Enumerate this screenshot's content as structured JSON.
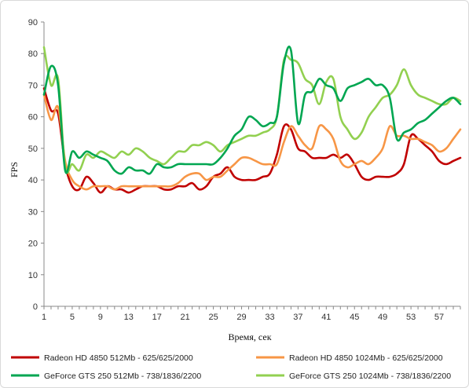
{
  "chart_data": {
    "type": "line",
    "title": "",
    "xlabel": "Время, сек",
    "ylabel": "FPS",
    "xlim": [
      1,
      60
    ],
    "ylim": [
      0,
      90
    ],
    "y_ticks": [
      0,
      10,
      20,
      30,
      40,
      50,
      60,
      70,
      80,
      90
    ],
    "x_ticks": [
      1,
      5,
      9,
      13,
      17,
      21,
      25,
      29,
      33,
      37,
      41,
      45,
      49,
      53,
      57
    ],
    "grid": false,
    "legend_position": "bottom",
    "series": [
      {
        "name": "Radeon HD 4850 512Mb - 625/625/2000",
        "color": "#c00000",
        "x": [
          1,
          2,
          3,
          4,
          5,
          6,
          7,
          8,
          9,
          10,
          11,
          12,
          13,
          14,
          15,
          16,
          17,
          18,
          19,
          20,
          21,
          22,
          23,
          24,
          25,
          26,
          27,
          28,
          29,
          30,
          31,
          32,
          33,
          34,
          35,
          36,
          37,
          38,
          39,
          40,
          41,
          42,
          43,
          44,
          45,
          46,
          47,
          48,
          49,
          50,
          51,
          52,
          53,
          54,
          55,
          56,
          57,
          58,
          59,
          60
        ],
        "values": [
          69,
          62,
          61,
          45,
          38,
          37,
          41,
          39,
          36,
          38,
          37,
          37,
          36,
          37,
          38,
          38,
          38,
          37,
          37,
          38,
          38,
          39,
          37,
          38,
          41,
          42,
          44,
          41,
          40,
          40,
          40,
          41,
          42,
          48,
          57,
          56,
          50,
          49,
          47,
          47,
          47,
          48,
          47,
          48,
          45,
          41,
          40,
          41,
          41,
          41,
          42,
          45,
          54,
          53,
          51,
          49,
          46,
          45,
          46,
          47
        ]
      },
      {
        "name": "Radeon HD 4850 1024Mb - 625/625/2000",
        "color": "#f79646",
        "x": [
          1,
          2,
          3,
          4,
          5,
          6,
          7,
          8,
          9,
          10,
          11,
          12,
          13,
          14,
          15,
          16,
          17,
          18,
          19,
          20,
          21,
          22,
          23,
          24,
          25,
          26,
          27,
          28,
          29,
          30,
          31,
          32,
          33,
          34,
          35,
          36,
          37,
          38,
          39,
          40,
          41,
          42,
          43,
          44,
          45,
          46,
          47,
          48,
          49,
          50,
          51,
          52,
          53,
          54,
          55,
          56,
          57,
          58,
          59,
          60
        ],
        "values": [
          67,
          59,
          63,
          46,
          40,
          38,
          37,
          38,
          38,
          38,
          37,
          38,
          38,
          38,
          38,
          38,
          38,
          38,
          38,
          39,
          41,
          42,
          42,
          40,
          41,
          41,
          43,
          45,
          47,
          47,
          46,
          45,
          45,
          45,
          52,
          57,
          54,
          51,
          50,
          57,
          56,
          53,
          46,
          44,
          45,
          46,
          45,
          47,
          50,
          57,
          54,
          54,
          53,
          53,
          52,
          51,
          49,
          50,
          53,
          56
        ]
      },
      {
        "name": "GeForce GTS 250 512Mb - 738/1836/2200",
        "color": "#00a651",
        "x": [
          1,
          2,
          3,
          4,
          5,
          6,
          7,
          8,
          9,
          10,
          11,
          12,
          13,
          14,
          15,
          16,
          17,
          18,
          19,
          20,
          21,
          22,
          23,
          24,
          25,
          26,
          27,
          28,
          29,
          30,
          31,
          32,
          33,
          34,
          35,
          36,
          37,
          38,
          39,
          40,
          41,
          42,
          43,
          44,
          45,
          46,
          47,
          48,
          49,
          50,
          51,
          52,
          53,
          54,
          55,
          56,
          57,
          58,
          59,
          60
        ],
        "values": [
          67,
          76,
          70,
          43,
          49,
          47,
          49,
          48,
          47,
          46,
          43,
          42,
          44,
          43,
          43,
          42,
          45,
          44,
          44,
          45,
          45,
          45,
          45,
          45,
          45,
          47,
          50,
          54,
          56,
          60,
          59,
          57,
          58,
          60,
          77,
          81,
          58,
          67,
          68,
          72,
          70,
          69,
          65,
          69,
          70,
          71,
          72,
          70,
          70,
          66,
          53,
          55,
          56,
          58,
          59,
          61,
          63,
          65,
          66,
          64
        ]
      },
      {
        "name": "GeForce GTS 250 1024Mb - 738/1836/2200",
        "color": "#92d050",
        "x": [
          1,
          2,
          3,
          4,
          5,
          6,
          7,
          8,
          9,
          10,
          11,
          12,
          13,
          14,
          15,
          16,
          17,
          18,
          19,
          20,
          21,
          22,
          23,
          24,
          25,
          26,
          27,
          28,
          29,
          30,
          31,
          32,
          33,
          34,
          35,
          36,
          37,
          38,
          39,
          40,
          41,
          42,
          43,
          44,
          45,
          46,
          47,
          48,
          49,
          50,
          51,
          52,
          53,
          54,
          55,
          56,
          57,
          58,
          59,
          60
        ],
        "values": [
          82,
          70,
          72,
          44,
          45,
          43,
          48,
          47,
          49,
          48,
          47,
          49,
          48,
          50,
          49,
          47,
          46,
          45,
          47,
          49,
          49,
          51,
          51,
          52,
          51,
          49,
          51,
          52,
          53,
          54,
          54,
          55,
          56,
          60,
          78,
          78,
          77,
          72,
          70,
          64,
          71,
          72,
          60,
          56,
          53,
          55,
          60,
          63,
          66,
          67,
          70,
          75,
          70,
          67,
          66,
          65,
          64,
          64,
          66,
          65
        ]
      }
    ]
  }
}
